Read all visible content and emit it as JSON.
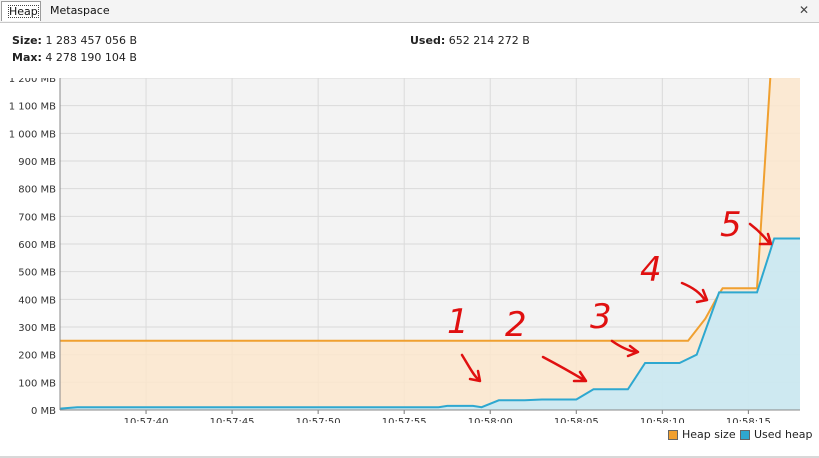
{
  "tabs": [
    {
      "label": "Heap",
      "active": true
    },
    {
      "label": "Metaspace",
      "active": false
    }
  ],
  "close_icon": "close-icon",
  "stats": {
    "size_label": "Size:",
    "size_value": "1 283 457 056 B",
    "max_label": "Max:",
    "max_value": "4 278 190 104 B",
    "used_label": "Used:",
    "used_value": "652 214 272 B"
  },
  "colors": {
    "heap_line": "#f0a030",
    "heap_fill": "#fbe6cc",
    "used_line": "#2ea8d0",
    "used_fill": "#c5e9f6",
    "annotation": "#e01010"
  },
  "chart_data": {
    "type": "area",
    "y_unit": "MB",
    "ylim": [
      0,
      1200
    ],
    "y_ticks": [
      0,
      100,
      200,
      300,
      400,
      500,
      600,
      700,
      800,
      900,
      1000,
      1100,
      1200
    ],
    "y_tick_labels": [
      "0 MB",
      "100 MB",
      "200 MB",
      "300 MB",
      "400 MB",
      "500 MB",
      "600 MB",
      "700 MB",
      "800 MB",
      "900 MB",
      "1 000 MB",
      "1 100 MB",
      "1 200 MB"
    ],
    "x_ticks": [
      "10:57:40",
      "10:57:45",
      "10:57:50",
      "10:57:55",
      "10:58:00",
      "10:58:05",
      "10:58:10",
      "10:58:15"
    ],
    "xlim": [
      "10:57:35",
      "10:58:18"
    ],
    "grid": true,
    "legend_position": "bottom-right",
    "series": [
      {
        "name": "Heap size",
        "points": [
          [
            "10:57:35",
            250
          ],
          [
            "10:58:11.5",
            250
          ],
          [
            "10:58:12.5",
            330
          ],
          [
            "10:58:13.3",
            420
          ],
          [
            "10:58:13.5",
            440
          ],
          [
            "10:58:15.5",
            440
          ],
          [
            "10:58:16.3",
            1224
          ],
          [
            "10:58:18",
            1224
          ]
        ]
      },
      {
        "name": "Used heap",
        "points": [
          [
            "10:57:35",
            5
          ],
          [
            "10:57:36",
            10
          ],
          [
            "10:57:57",
            10
          ],
          [
            "10:57:57.5",
            15
          ],
          [
            "10:57:59",
            15
          ],
          [
            "10:57:59.5",
            10
          ],
          [
            "10:58:00.5",
            35
          ],
          [
            "10:58:02",
            35
          ],
          [
            "10:58:03",
            38
          ],
          [
            "10:58:05",
            38
          ],
          [
            "10:58:06",
            75
          ],
          [
            "10:58:08",
            75
          ],
          [
            "10:58:09",
            170
          ],
          [
            "10:58:11",
            170
          ],
          [
            "10:58:12",
            200
          ],
          [
            "10:58:13.3",
            425
          ],
          [
            "10:58:15.5",
            425
          ],
          [
            "10:58:16.5",
            620
          ],
          [
            "10:58:18",
            620
          ]
        ]
      }
    ],
    "annotations": [
      "1",
      "2",
      "3",
      "4",
      "5"
    ]
  }
}
